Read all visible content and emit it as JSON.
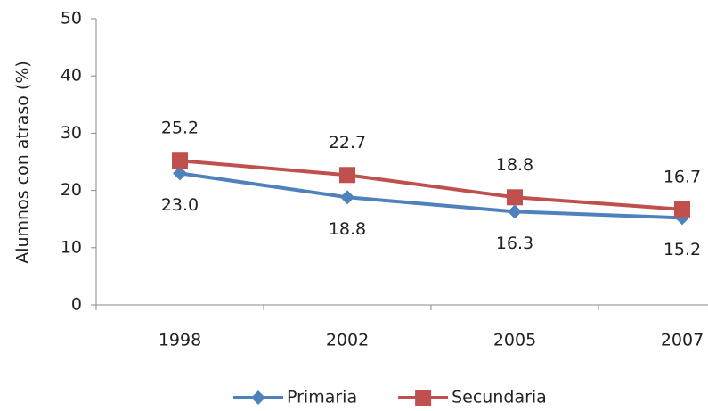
{
  "chart_data": {
    "type": "line",
    "y_label": "Alumnos con atraso (%)",
    "categories": [
      "1998",
      "2002",
      "2005",
      "2007"
    ],
    "series": [
      {
        "name": "Primaria",
        "color": "#4f81bd",
        "marker": "diamond",
        "values": [
          23.0,
          18.8,
          16.3,
          15.2
        ],
        "value_labels": [
          "23.0",
          "18.8",
          "16.3",
          "15.2"
        ],
        "label_position": "below"
      },
      {
        "name": "Secundaria",
        "color": "#c0504d",
        "marker": "square",
        "values": [
          25.2,
          22.7,
          18.8,
          16.7
        ],
        "value_labels": [
          "25.2",
          "22.7",
          "18.8",
          "16.7"
        ],
        "label_position": "above"
      }
    ],
    "ylim": [
      0,
      50
    ],
    "yticks": [
      0,
      10,
      20,
      30,
      40,
      50
    ],
    "legend": "bottom"
  }
}
